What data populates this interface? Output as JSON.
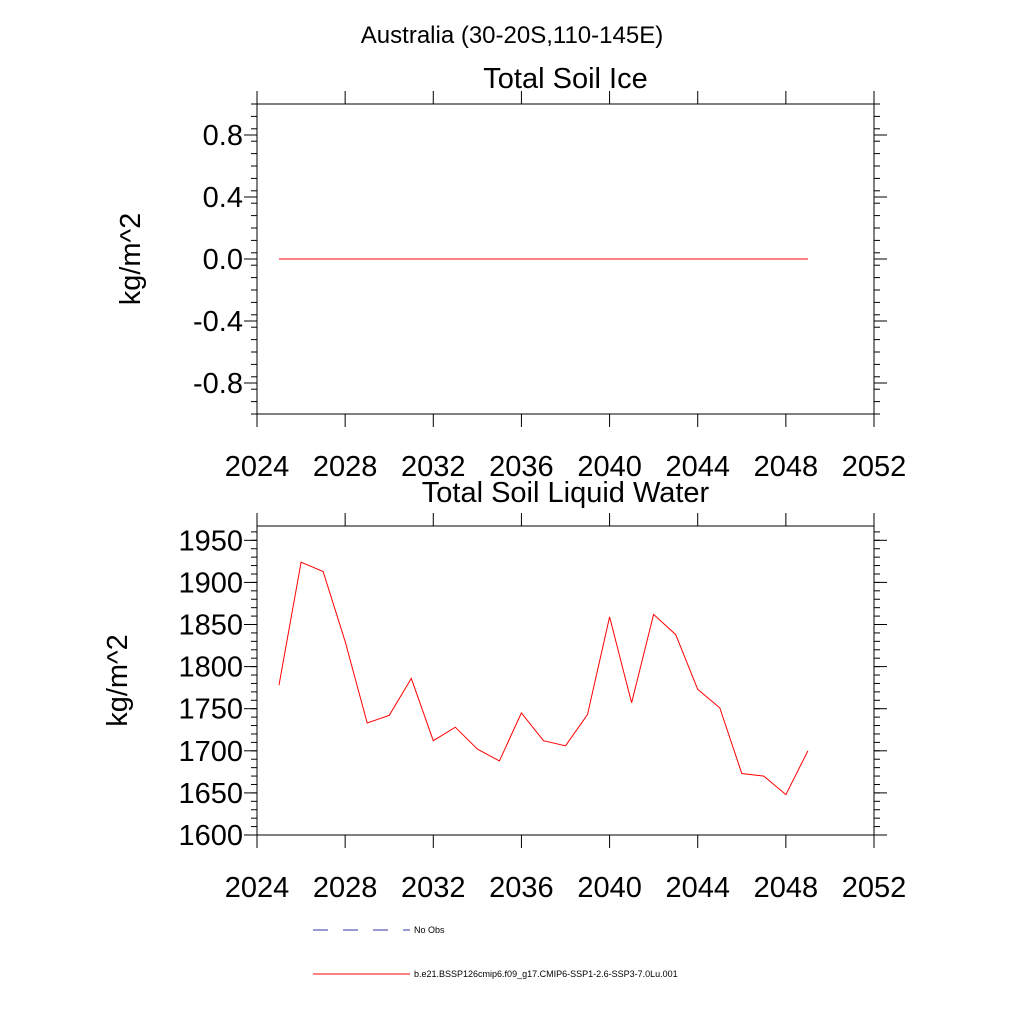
{
  "figure": {
    "title": "Australia (30-20S,110-145E)"
  },
  "chart_data": [
    {
      "type": "line",
      "title": "Total Soil Ice",
      "xlabel": "",
      "ylabel": "kg/m^2",
      "xlim": [
        2024,
        2052
      ],
      "ylim": [
        -1.0,
        1.0
      ],
      "xticks": [
        2024,
        2028,
        2032,
        2036,
        2040,
        2044,
        2048,
        2052
      ],
      "yticks": [
        -0.8,
        -0.4,
        0.0,
        0.4,
        0.8
      ],
      "ytick_labels": [
        "-0.8",
        "-0.4",
        "0.0",
        "0.4",
        "0.8"
      ],
      "x": [
        2025,
        2026,
        2027,
        2028,
        2029,
        2030,
        2031,
        2032,
        2033,
        2034,
        2035,
        2036,
        2037,
        2038,
        2039,
        2040,
        2041,
        2042,
        2043,
        2044,
        2045,
        2046,
        2047,
        2048,
        2049
      ],
      "series": [
        {
          "color": "#ff0000",
          "values": [
            0,
            0,
            0,
            0,
            0,
            0,
            0,
            0,
            0,
            0,
            0,
            0,
            0,
            0,
            0,
            0,
            0,
            0,
            0,
            0,
            0,
            0,
            0,
            0,
            0
          ]
        }
      ]
    },
    {
      "type": "line",
      "title": "Total Soil Liquid Water",
      "xlabel": "",
      "ylabel": "kg/m^2",
      "xlim": [
        2024,
        2052
      ],
      "ylim": [
        1600,
        1967
      ],
      "xticks": [
        2024,
        2028,
        2032,
        2036,
        2040,
        2044,
        2048,
        2052
      ],
      "yticks": [
        1600,
        1650,
        1700,
        1750,
        1800,
        1850,
        1900,
        1950
      ],
      "ytick_labels": [
        "1600",
        "1650",
        "1700",
        "1750",
        "1800",
        "1850",
        "1900",
        "1950"
      ],
      "x": [
        2025,
        2026,
        2027,
        2028,
        2029,
        2030,
        2031,
        2032,
        2033,
        2034,
        2035,
        2036,
        2037,
        2038,
        2039,
        2040,
        2041,
        2042,
        2043,
        2044,
        2045,
        2046,
        2047,
        2048,
        2049
      ],
      "series": [
        {
          "color": "#ff0000",
          "values": [
            1778,
            1924,
            1913,
            1830,
            1733,
            1742,
            1786,
            1712,
            1728,
            1702,
            1688,
            1745,
            1712,
            1706,
            1743,
            1859,
            1757,
            1862,
            1838,
            1773,
            1751,
            1673,
            1670,
            1648,
            1700
          ]
        }
      ]
    }
  ],
  "legend": {
    "items": [
      {
        "label": "No Obs",
        "color": "#3333aa",
        "dashed": true
      },
      {
        "label": "b.e21.BSSP126cmip6.f09_g17.CMIP6-SSP1-2.6-SSP3-7.0Lu.001",
        "color": "#ff0000",
        "dashed": false
      }
    ]
  }
}
